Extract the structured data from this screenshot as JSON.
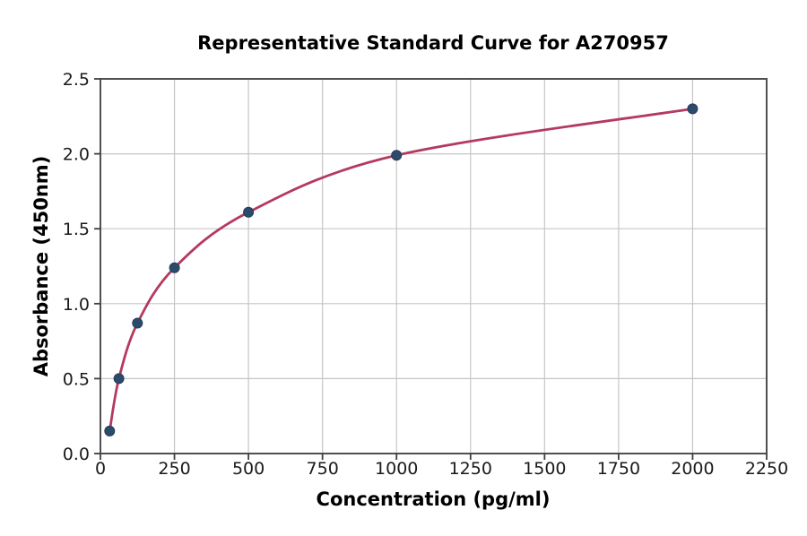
{
  "chart_data": {
    "type": "scatter",
    "title": "Representative Standard Curve for A270957",
    "xlabel": "Concentration (pg/ml)",
    "ylabel": "Absorbance (450nm)",
    "xlim": [
      0,
      2250
    ],
    "ylim": [
      0,
      2.5
    ],
    "grid": true,
    "legend_position": "none",
    "x_ticks": [
      {
        "value": 0,
        "label": "0"
      },
      {
        "value": 250,
        "label": "250"
      },
      {
        "value": 500,
        "label": "500"
      },
      {
        "value": 750,
        "label": "750"
      },
      {
        "value": 1000,
        "label": "1000"
      },
      {
        "value": 1250,
        "label": "1250"
      },
      {
        "value": 1500,
        "label": "1500"
      },
      {
        "value": 1750,
        "label": "1750"
      },
      {
        "value": 2000,
        "label": "2000"
      },
      {
        "value": 2250,
        "label": "2250"
      }
    ],
    "y_ticks": [
      {
        "value": 0,
        "label": "0.0"
      },
      {
        "value": 0.5,
        "label": "0.5"
      },
      {
        "value": 1.0,
        "label": "1.0"
      },
      {
        "value": 1.5,
        "label": "1.5"
      },
      {
        "value": 2.0,
        "label": "2.0"
      },
      {
        "value": 2.5,
        "label": "2.5"
      }
    ],
    "points": [
      {
        "x": 31.25,
        "y": 0.15
      },
      {
        "x": 62.5,
        "y": 0.5
      },
      {
        "x": 125,
        "y": 0.87
      },
      {
        "x": 250,
        "y": 1.24
      },
      {
        "x": 500,
        "y": 1.61
      },
      {
        "x": 1000,
        "y": 1.99
      },
      {
        "x": 2000,
        "y": 2.3
      }
    ],
    "colors": {
      "curve": "#b43a5f",
      "point_fill": "#2e4a6b",
      "point_edge": "#243c58",
      "grid": "#c6c6c6",
      "spine": "#4f4f4f",
      "tick": "#3f3f3f",
      "text": "#1a1a1a",
      "background": "#ffffff"
    }
  }
}
